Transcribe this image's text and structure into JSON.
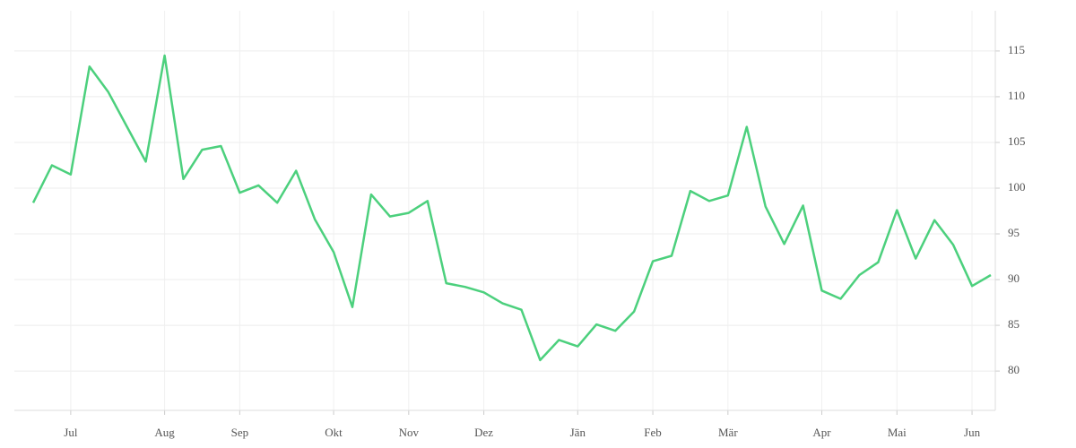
{
  "chart_data": {
    "type": "line",
    "categories": [
      null,
      null,
      "Jul",
      null,
      null,
      null,
      null,
      "Aug",
      null,
      null,
      null,
      "Sep",
      null,
      null,
      null,
      null,
      "Okt",
      null,
      null,
      null,
      "Nov",
      null,
      null,
      null,
      "Dez",
      null,
      null,
      null,
      null,
      "Jän",
      null,
      null,
      null,
      "Feb",
      null,
      null,
      null,
      "Mär",
      null,
      null,
      null,
      null,
      "Apr",
      null,
      null,
      null,
      "Mai",
      null,
      null,
      null,
      "Jun",
      null
    ],
    "series": [
      {
        "color": "#4cd07d",
        "values": [
          98.4,
          102.5,
          101.5,
          113.3,
          110.5,
          106.7,
          102.9,
          114.5,
          101.0,
          104.2,
          104.6,
          99.5,
          100.3,
          98.4,
          101.9,
          96.6,
          93.0,
          87.0,
          99.3,
          96.9,
          97.3,
          98.6,
          89.6,
          89.2,
          88.6,
          87.4,
          86.7,
          81.2,
          83.4,
          82.7,
          85.1,
          84.4,
          86.5,
          92.0,
          92.6,
          99.7,
          98.6,
          99.2,
          106.7,
          98.0,
          93.9,
          98.1,
          88.8,
          87.9,
          90.5,
          91.9,
          97.6,
          92.3,
          96.5,
          93.8,
          89.3,
          90.5
        ]
      }
    ],
    "ylim": [
      75.7,
      119.4
    ],
    "yticks": [
      80,
      85,
      90,
      95,
      100,
      105,
      110,
      115
    ],
    "grid": true
  }
}
